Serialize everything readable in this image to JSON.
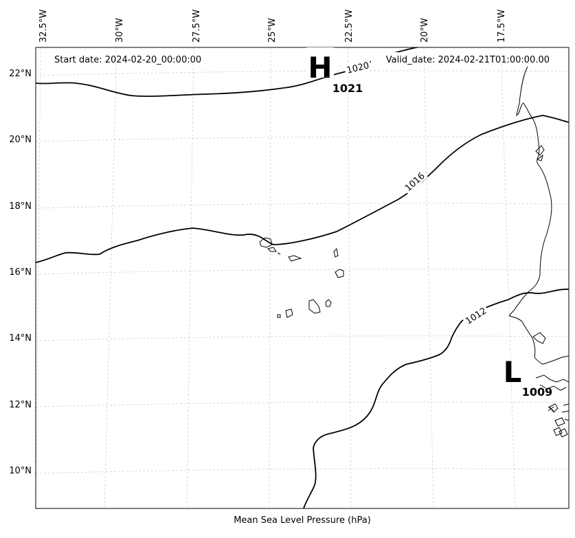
{
  "header": {
    "start_date": "Start date: 2024-02-20_00:00:00",
    "valid_date": "Valid_date: 2024-02-21T01:00:00.00"
  },
  "xlabel": "Mean Sea Level Pressure (hPa)",
  "lon_ticks": [
    "32.5°W",
    "30°W",
    "27.5°W",
    "25°W",
    "22.5°W",
    "20°W",
    "17.5°W"
  ],
  "lat_ticks": [
    "22°N",
    "20°N",
    "18°N",
    "16°N",
    "14°N",
    "12°N",
    "10°N"
  ],
  "isobars": [
    {
      "value": 1020,
      "label": "1020"
    },
    {
      "value": 1016,
      "label": "1016"
    },
    {
      "value": 1012,
      "label": "1012"
    }
  ],
  "pressure_centers": [
    {
      "type": "high",
      "letter": "H",
      "value": "1021"
    },
    {
      "type": "low",
      "letter": "L",
      "value": "1009"
    }
  ],
  "colors": {
    "isobar": "#000000",
    "grid": "#cccccc",
    "coast": "#000000"
  }
}
